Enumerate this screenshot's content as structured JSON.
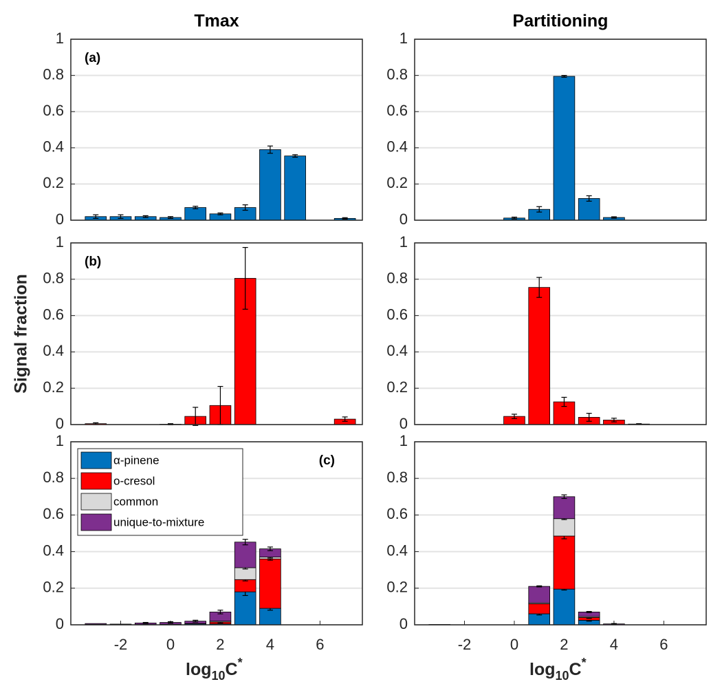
{
  "chart_data": [
    {
      "type": "bar",
      "title": "Tmax",
      "annotation": "(a)",
      "annotation_corner": "top-left",
      "grid": true,
      "x": [
        -3,
        -2,
        -1,
        0,
        1,
        2,
        3,
        4,
        5,
        6,
        7
      ],
      "xlim": [
        -4,
        7.7
      ],
      "ylim": [
        0,
        1
      ],
      "yticks": [
        0,
        0.2,
        0.4,
        0.6,
        0.8,
        1
      ],
      "series": [
        {
          "color": "#0072bd",
          "values": [
            0.02,
            0.02,
            0.02,
            0.015,
            0.07,
            0.035,
            0.07,
            0.39,
            0.355,
            null,
            0.01
          ],
          "errors": [
            0.01,
            0.01,
            0.005,
            0.005,
            0.007,
            0.005,
            0.015,
            0.02,
            0.007,
            null,
            0.004
          ]
        }
      ]
    },
    {
      "type": "bar",
      "title": "Partitioning",
      "grid": true,
      "x": [
        -3,
        -2,
        -1,
        0,
        1,
        2,
        3,
        4,
        5,
        6,
        7
      ],
      "xlim": [
        -4,
        7.7
      ],
      "ylim": [
        0,
        1
      ],
      "yticks": [
        0,
        0.2,
        0.4,
        0.6,
        0.8,
        1
      ],
      "series": [
        {
          "color": "#0072bd",
          "values": [
            null,
            null,
            null,
            0.012,
            0.06,
            0.795,
            0.12,
            0.015,
            null,
            null,
            null
          ],
          "errors": [
            null,
            null,
            null,
            0.005,
            0.015,
            0.005,
            0.015,
            0.004,
            null,
            null,
            null
          ]
        }
      ]
    },
    {
      "type": "bar",
      "annotation": "(b)",
      "annotation_corner": "top-left",
      "ylabel": "Signal fraction",
      "grid": true,
      "x": [
        -3,
        -2,
        -1,
        0,
        1,
        2,
        3,
        4,
        5,
        6,
        7
      ],
      "xlim": [
        -4,
        7.7
      ],
      "ylim": [
        0,
        1
      ],
      "yticks": [
        0,
        0.2,
        0.4,
        0.6,
        0.8,
        1
      ],
      "series": [
        {
          "color": "#ff0000",
          "values": [
            0.005,
            null,
            null,
            0.002,
            0.045,
            0.105,
            0.805,
            null,
            null,
            null,
            0.03
          ],
          "errors": [
            0.005,
            null,
            null,
            0.003,
            0.05,
            0.105,
            0.17,
            null,
            null,
            null,
            0.012
          ]
        }
      ]
    },
    {
      "type": "bar",
      "grid": true,
      "x": [
        -3,
        -2,
        -1,
        0,
        1,
        2,
        3,
        4,
        5,
        6,
        7
      ],
      "xlim": [
        -4,
        7.7
      ],
      "ylim": [
        0,
        1
      ],
      "yticks": [
        0,
        0.2,
        0.4,
        0.6,
        0.8,
        1
      ],
      "series": [
        {
          "color": "#ff0000",
          "values": [
            null,
            null,
            null,
            0.045,
            0.755,
            0.125,
            0.04,
            0.025,
            0.003,
            null,
            null
          ],
          "errors": [
            null,
            null,
            null,
            0.012,
            0.055,
            0.025,
            0.022,
            0.01,
            0.002,
            null,
            null
          ]
        }
      ]
    },
    {
      "type": "stacked_bar",
      "annotation": "(c)",
      "annotation_corner": "top-right",
      "legend": "top-left",
      "grid": true,
      "xlabel": {
        "base": "log",
        "subscript": "10",
        "variable": "C",
        "superscript": "*"
      },
      "x": [
        -3,
        -2,
        -1,
        0,
        1,
        2,
        3,
        4,
        5,
        6,
        7
      ],
      "xlim": [
        -4,
        7.7
      ],
      "ylim": [
        0,
        1
      ],
      "yticks": [
        0,
        0.2,
        0.4,
        0.6,
        0.8,
        1
      ],
      "xticks": [
        -2,
        0,
        2,
        4,
        6
      ],
      "series": [
        {
          "name": "α-pinene",
          "color": "#0072bd",
          "values": [
            0.002,
            0.001,
            0.002,
            0.003,
            0.005,
            0.005,
            0.18,
            0.09,
            null,
            null,
            null
          ],
          "errors": [
            null,
            null,
            null,
            null,
            null,
            null,
            0.02,
            0.01,
            null,
            null,
            null
          ]
        },
        {
          "name": "o-cresol",
          "color": "#ff0000",
          "values": [
            null,
            null,
            null,
            null,
            0.002,
            0.01,
            0.067,
            0.27,
            null,
            null,
            null
          ],
          "errors": [
            null,
            null,
            null,
            null,
            null,
            0.005,
            0.007,
            0.007,
            null,
            null,
            null
          ]
        },
        {
          "name": "common",
          "color": "#d9d9d9",
          "values": [
            null,
            null,
            null,
            null,
            null,
            0.005,
            0.065,
            0.01,
            null,
            null,
            null
          ],
          "errors": [
            null,
            null,
            null,
            null,
            null,
            null,
            0.007,
            0.005,
            null,
            null,
            null
          ]
        },
        {
          "name": "unique-to-mixture",
          "color": "#7e2f8e",
          "values": [
            0.005,
            0.003,
            0.008,
            0.01,
            0.013,
            0.05,
            0.14,
            0.045,
            null,
            null,
            null
          ],
          "errors": [
            null,
            null,
            0.003,
            0.004,
            0.005,
            0.01,
            0.015,
            0.01,
            null,
            null,
            null
          ]
        }
      ]
    },
    {
      "type": "stacked_bar",
      "grid": true,
      "xlabel": {
        "base": "log",
        "subscript": "10",
        "variable": "C",
        "superscript": "*"
      },
      "x": [
        -3,
        -2,
        -1,
        0,
        1,
        2,
        3,
        4,
        5,
        6,
        7
      ],
      "xlim": [
        -4,
        7.7
      ],
      "ylim": [
        0,
        1
      ],
      "yticks": [
        0,
        0.2,
        0.4,
        0.6,
        0.8,
        1
      ],
      "xticks": [
        -2,
        0,
        2,
        4,
        6
      ],
      "series": [
        {
          "color": "#0072bd",
          "values": [
            0.002,
            null,
            null,
            null,
            0.06,
            0.195,
            0.025,
            null,
            null,
            null,
            null
          ],
          "errors": [
            null,
            null,
            null,
            null,
            0.006,
            0.005,
            0.005,
            null,
            null,
            null,
            null
          ]
        },
        {
          "color": "#ff0000",
          "values": [
            null,
            null,
            null,
            null,
            0.055,
            0.29,
            0.015,
            null,
            null,
            null,
            null
          ],
          "errors": [
            null,
            null,
            null,
            null,
            null,
            0.015,
            0.005,
            null,
            null,
            null,
            null
          ]
        },
        {
          "color": "#d9d9d9",
          "values": [
            null,
            null,
            null,
            null,
            0.005,
            0.095,
            0.005,
            null,
            null,
            null,
            null
          ],
          "errors": [
            null,
            null,
            null,
            null,
            null,
            0.005,
            null,
            null,
            null,
            null,
            null
          ]
        },
        {
          "color": "#7e2f8e",
          "values": [
            null,
            null,
            null,
            null,
            0.09,
            0.12,
            0.025,
            0.005,
            null,
            null,
            null
          ],
          "errors": [
            null,
            null,
            null,
            null,
            0.003,
            0.01,
            0.003,
            0.002,
            null,
            null,
            null
          ]
        }
      ]
    }
  ]
}
